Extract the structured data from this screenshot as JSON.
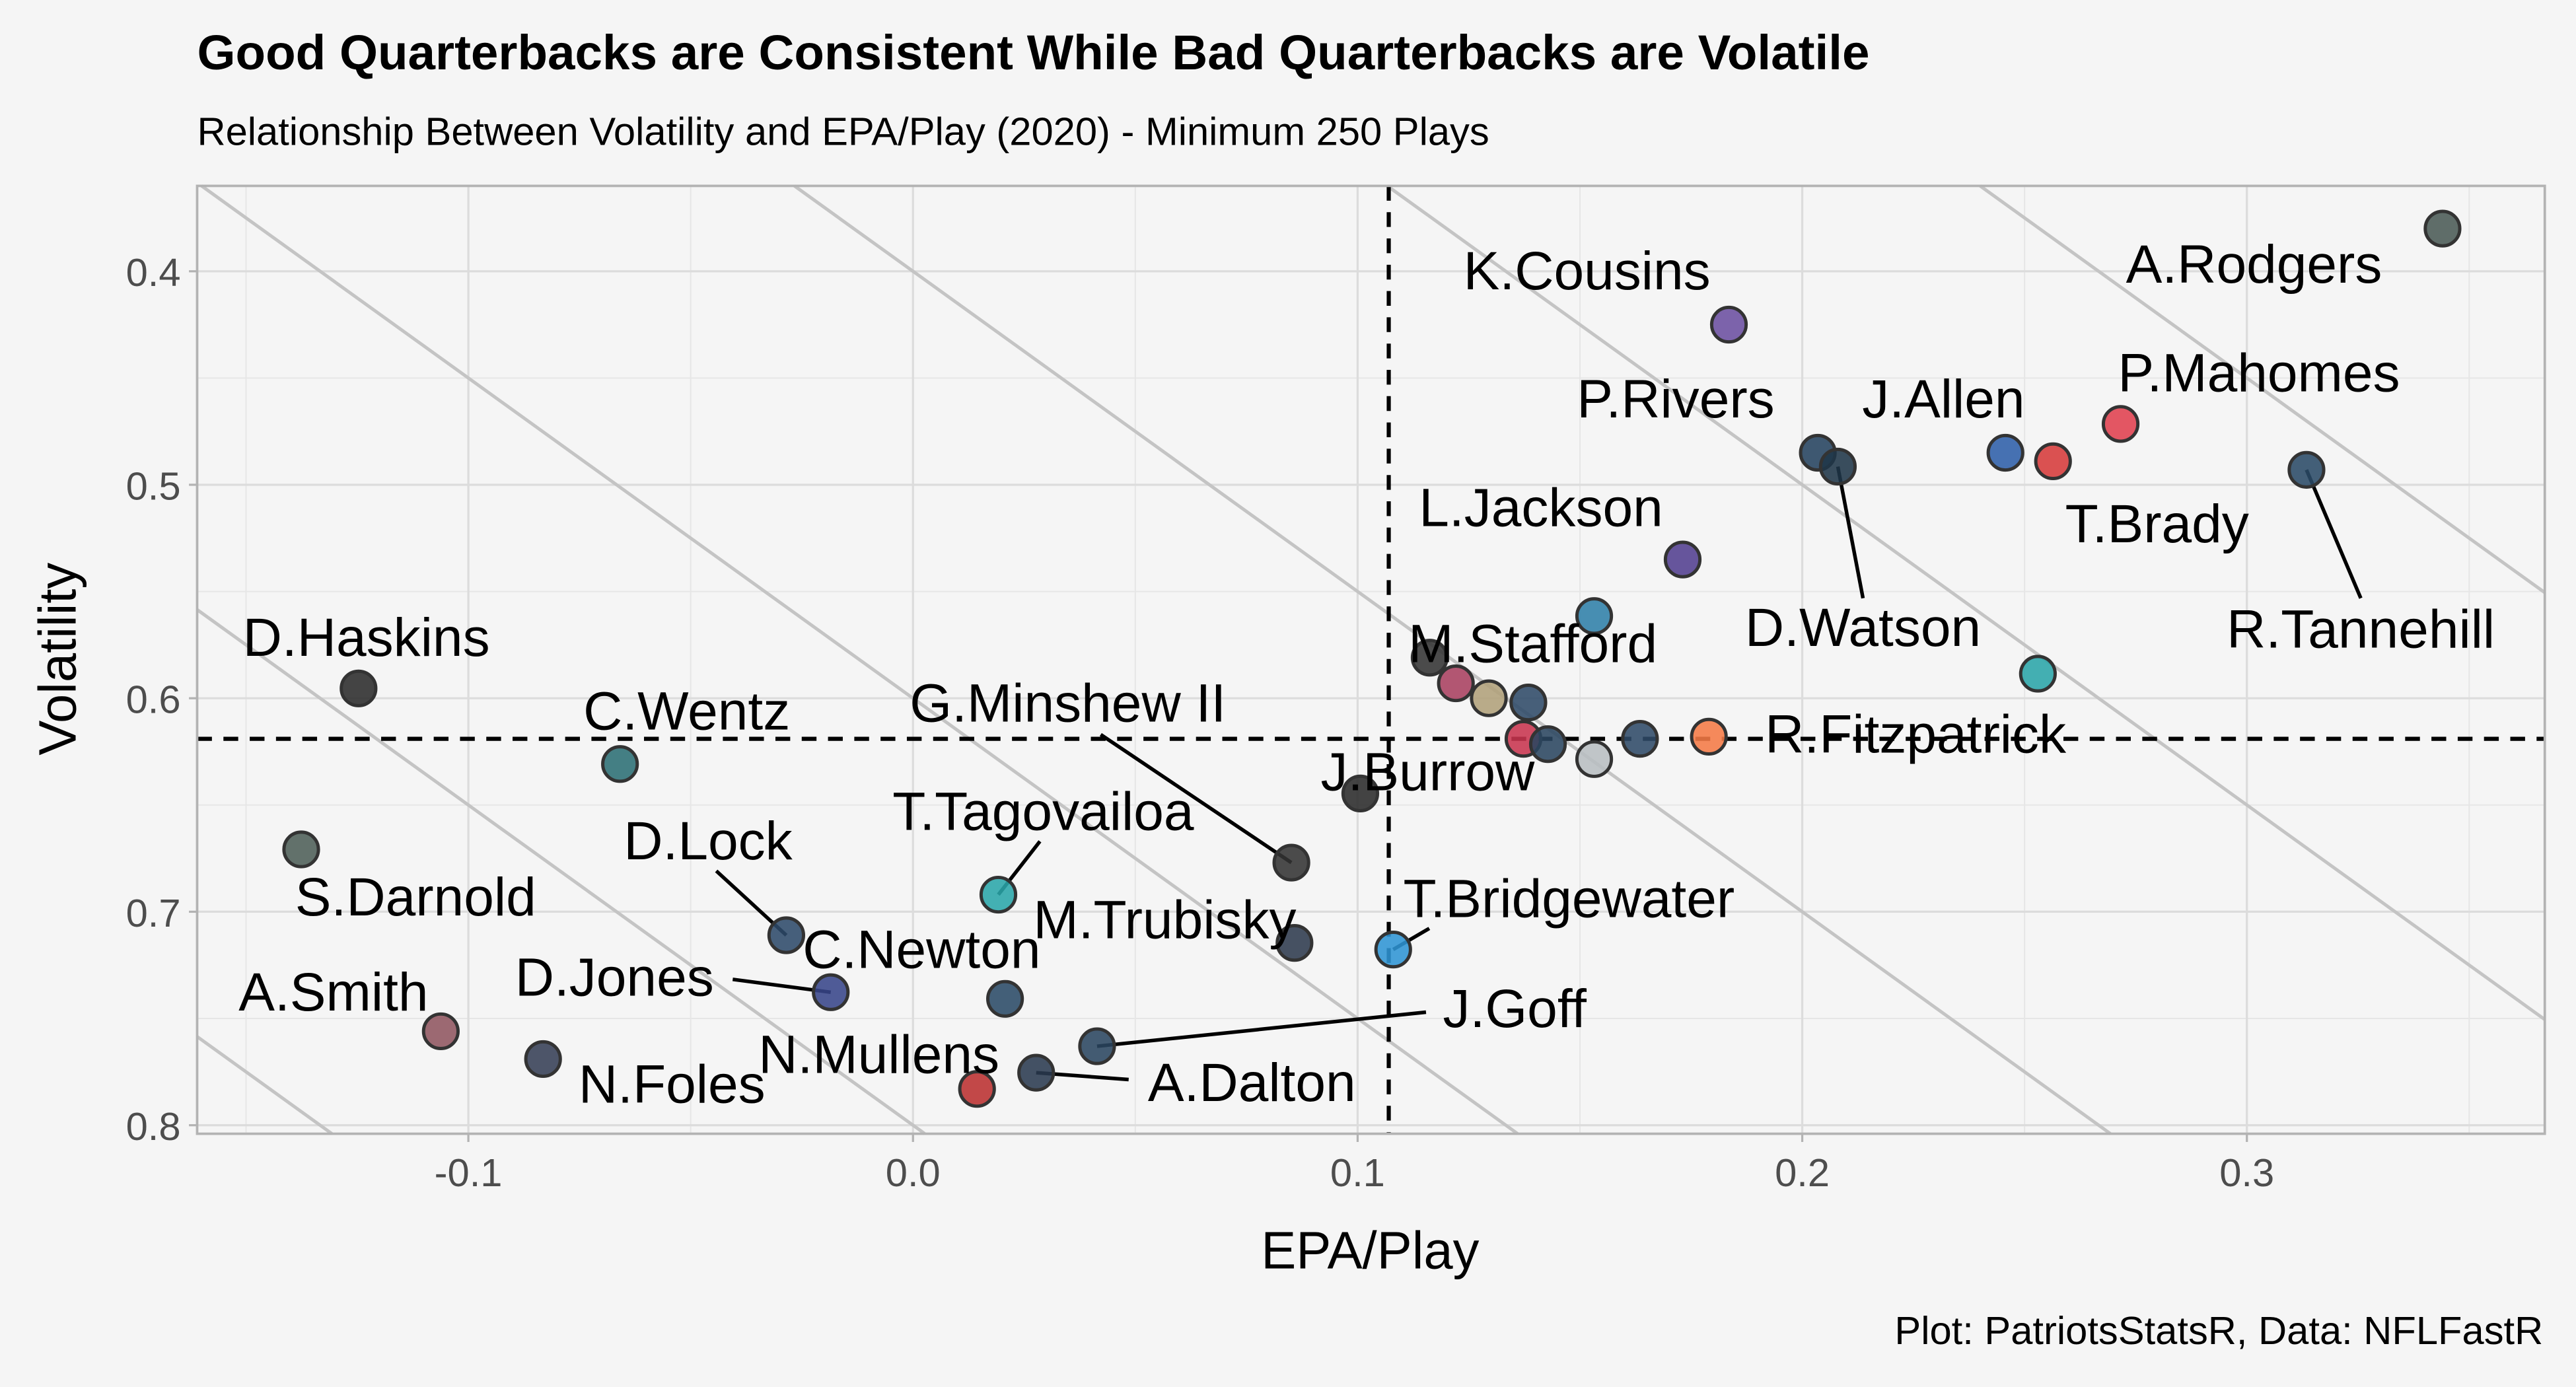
{
  "chart_data": {
    "type": "scatter",
    "title": "Good Quarterbacks are Consistent While Bad Quarterbacks are Volatile",
    "subtitle": "Relationship Between Volatility and EPA/Play (2020) - Minimum 250 Plays",
    "xlabel": "EPA/Play",
    "ylabel": "Volatility",
    "caption": "Plot: PatriotsStatsR, Data: NFLFastR",
    "xlim": [
      -0.161,
      0.367
    ],
    "ylim": [
      0.36,
      0.804
    ],
    "y_reversed": true,
    "x_ticks": [
      "-0.1",
      "0.0",
      "0.1",
      "0.2",
      "0.3"
    ],
    "x_tick_values": [
      -0.1,
      0.0,
      0.1,
      0.2,
      0.3
    ],
    "y_ticks": [
      "0.4",
      "0.5",
      "0.6",
      "0.7",
      "0.8"
    ],
    "y_tick_values": [
      0.4,
      0.5,
      0.6,
      0.7,
      0.8
    ],
    "grid": true,
    "reference_lines": {
      "vertical_epa": 0.107,
      "horizontal_volatility": 0.619,
      "style": "dashed"
    },
    "diagonal_lines": {
      "slope": 1.5,
      "intercepts": [
        0.0,
        0.2,
        0.4,
        0.6,
        0.8,
        1.0
      ],
      "color": "#c4c4c4"
    },
    "points": [
      {
        "label": "A.Rodgers",
        "x": 0.344,
        "y": 0.38,
        "color": "#4a5a55"
      },
      {
        "label": "K.Cousins",
        "x": 0.1835,
        "y": 0.425,
        "color": "#6b4fa0"
      },
      {
        "label": "P.Rivers",
        "x": 0.2035,
        "y": 0.485,
        "color": "#24425f"
      },
      {
        "label": "D.Watson",
        "x": 0.208,
        "y": 0.4915,
        "color": "#1f3548"
      },
      {
        "label": "J.Allen",
        "x": 0.2457,
        "y": 0.485,
        "color": "#2e5fa8"
      },
      {
        "label": "T.Brady",
        "x": 0.2564,
        "y": 0.489,
        "color": "#d63a3a"
      },
      {
        "label": "P.Mahomes",
        "x": 0.2716,
        "y": 0.4715,
        "color": "#e0404f"
      },
      {
        "label": "R.Tannehill",
        "x": 0.3134,
        "y": 0.493,
        "color": "#2a4a66"
      },
      {
        "label": "L.Jackson",
        "x": 0.1731,
        "y": 0.535,
        "color": "#523f8f"
      },
      {
        "label": "",
        "x": 0.1532,
        "y": 0.5615,
        "color": "#2f7fa8"
      },
      {
        "label": "",
        "x": 0.253,
        "y": 0.5885,
        "color": "#2aa5a8"
      },
      {
        "label": "M.Stafford",
        "x": 0.1162,
        "y": 0.581,
        "color": "#333333"
      },
      {
        "label": "",
        "x": 0.1221,
        "y": 0.593,
        "color": "#a84060"
      },
      {
        "label": "",
        "x": 0.1295,
        "y": 0.6,
        "color": "#b0a07a"
      },
      {
        "label": "",
        "x": 0.1384,
        "y": 0.602,
        "color": "#2f4a68"
      },
      {
        "label": "",
        "x": 0.1373,
        "y": 0.619,
        "color": "#c8344e"
      },
      {
        "label": "",
        "x": 0.1428,
        "y": 0.6215,
        "color": "#2a4560"
      },
      {
        "label": "",
        "x": 0.1532,
        "y": 0.6285,
        "color": "#b8bec2"
      },
      {
        "label": "",
        "x": 0.1635,
        "y": 0.619,
        "color": "#2f4a68"
      },
      {
        "label": "R.Fitzpatrick",
        "x": 0.179,
        "y": 0.618,
        "color": "#f57a45"
      },
      {
        "label": "J.Burrow",
        "x": 0.1006,
        "y": 0.6446,
        "color": "#2a2a2a"
      },
      {
        "label": "D.Haskins",
        "x": -0.1247,
        "y": 0.5954,
        "color": "#2b2b2b"
      },
      {
        "label": "C.Wentz",
        "x": -0.0659,
        "y": 0.6308,
        "color": "#2b6e74"
      },
      {
        "label": "S.Darnold",
        "x": -0.1376,
        "y": 0.6708,
        "color": "#4d5e58"
      },
      {
        "label": "G.Minshew II",
        "x": 0.0851,
        "y": 0.677,
        "color": "#333333"
      },
      {
        "label": "T.Tagovailoa",
        "x": 0.0192,
        "y": 0.692,
        "color": "#2aa6aa"
      },
      {
        "label": "D.Lock",
        "x": -0.0285,
        "y": 0.711,
        "color": "#2d4a6a"
      },
      {
        "label": "M.Trubisky",
        "x": 0.0858,
        "y": 0.7146,
        "color": "#2d3a4d"
      },
      {
        "label": "C.Newton",
        "x": 0.0207,
        "y": 0.7408,
        "color": "#2a4a66"
      },
      {
        "label": "D.Jones",
        "x": -0.0185,
        "y": 0.7377,
        "color": "#38468a"
      },
      {
        "label": "T.Bridgewater",
        "x": 0.108,
        "y": 0.7177,
        "color": "#2f95d5"
      },
      {
        "label": "J.Goff",
        "x": 0.0414,
        "y": 0.763,
        "color": "#2a4560"
      },
      {
        "label": "A.Dalton",
        "x": 0.0277,
        "y": 0.7754,
        "color": "#2a3a50"
      },
      {
        "label": "N.Mullens",
        "x": 0.0144,
        "y": 0.783,
        "color": "#bb3030"
      },
      {
        "label": "A.Smith",
        "x": -0.1062,
        "y": 0.756,
        "color": "#8f5560"
      },
      {
        "label": "N.Foles",
        "x": -0.0832,
        "y": 0.769,
        "color": "#353f55"
      }
    ]
  }
}
